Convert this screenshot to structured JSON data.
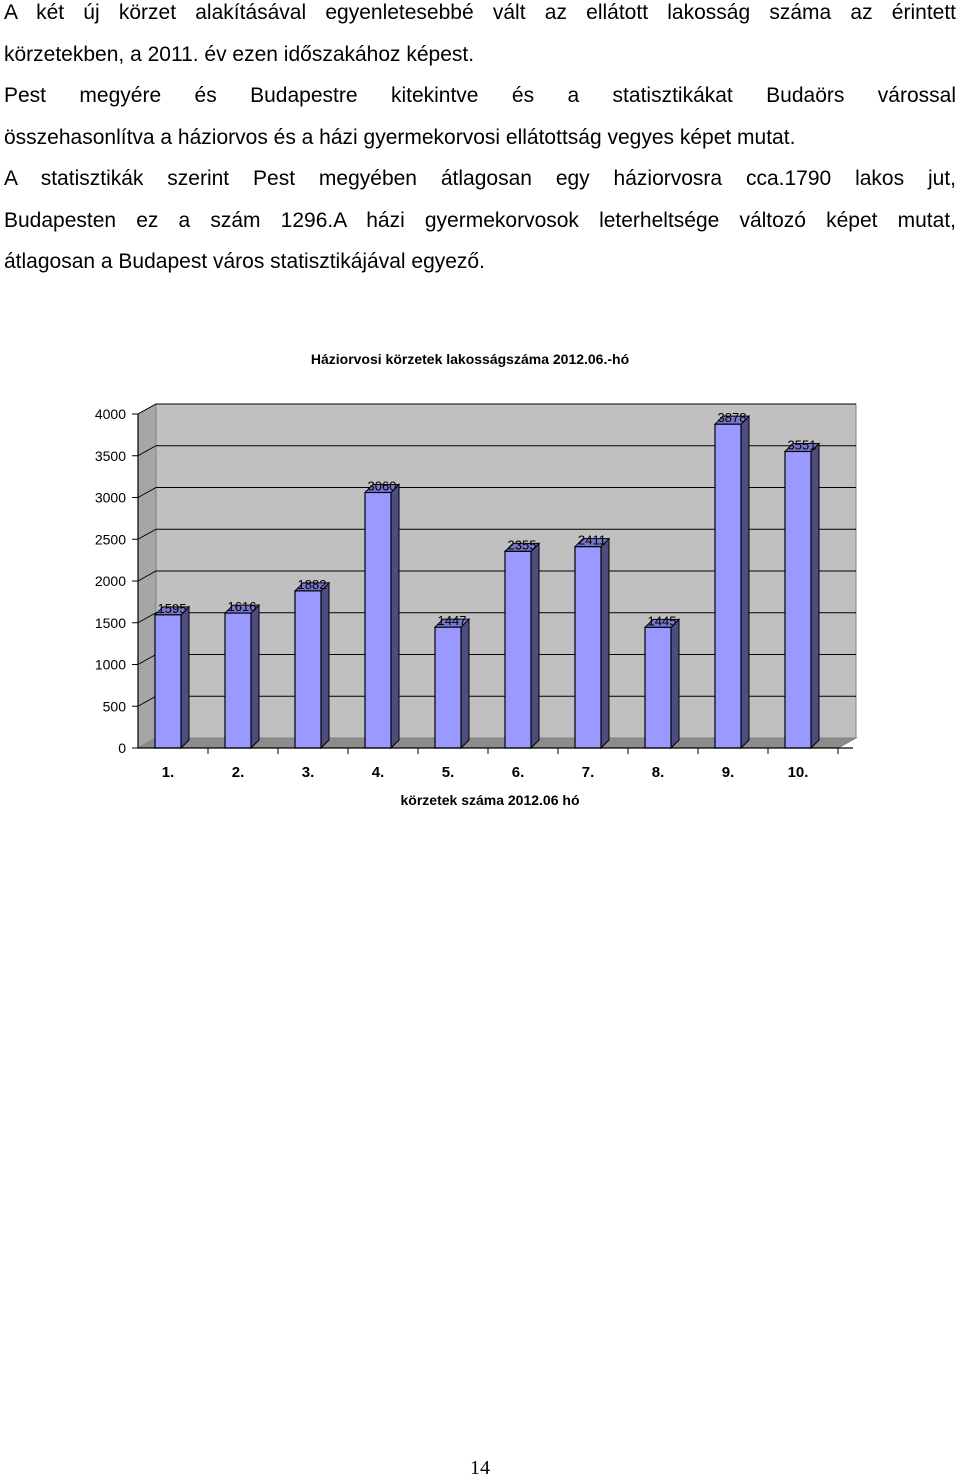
{
  "body_text": {
    "lines": [
      "A két új körzet alakításával egyenletesebbé vált az ellátott lakosság száma az érintett",
      "körzetekben, a 2011. év ezen időszakához képest.",
      "Pest megyére és Budapestre kitekintve és a statisztikákat Budaörs várossal",
      "összehasonlítva a háziorvos és a házi gyermekorvosi ellátottság vegyes képet mutat.",
      "A statisztikák szerint Pest megyében átlagosan egy háziorvosra cca.1790 lakos jut,",
      "Budapesten ez a szám 1296.A házi gyermekorvosok leterheltsége változó képet mutat,",
      "átlagosan a Budapest város statisztikájával egyező."
    ]
  },
  "chart_data": {
    "type": "bar",
    "title": "Háziorvosi körzetek lakosságszáma 2012.06.-hó",
    "xlabel": "körzetek száma 2012.06 hó",
    "ylabel": "",
    "categories": [
      "1.",
      "2.",
      "3.",
      "4.",
      "5.",
      "6.",
      "7.",
      "8.",
      "9.",
      "10."
    ],
    "values": [
      1595,
      1616,
      1882,
      3060,
      1447,
      2355,
      2411,
      1445,
      3878,
      3551
    ],
    "data_labels": [
      "1595",
      "1616",
      "1882",
      "3060",
      "1447",
      "2355",
      "2411",
      "1445",
      "3878",
      "3551"
    ],
    "ylim": [
      0,
      4000
    ],
    "yticks": [
      0,
      500,
      1000,
      1500,
      2000,
      2500,
      3000,
      3500,
      4000
    ],
    "ytick_labels": [
      "0",
      "500",
      "1000",
      "1500",
      "2000",
      "2500",
      "3000",
      "3500",
      "4000"
    ],
    "style": "3d-column",
    "grid": true,
    "legend": "none",
    "colors": {
      "bar_front": "#9999ff",
      "bar_side": "#4d4d80",
      "bar_top": "#7777cc",
      "plot_wall": "#c0c0c0",
      "outline": "#000000"
    }
  },
  "page": {
    "number": "14"
  }
}
